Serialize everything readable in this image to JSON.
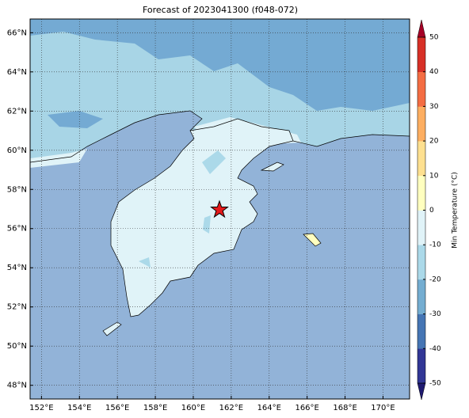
{
  "map": {
    "title": "Forecast of 2023041300 (f048-072)",
    "xlim": [
      151.4,
      171.4
    ],
    "ylim": [
      47.3,
      66.7
    ],
    "xticks": [
      {
        "value": 152,
        "label": "152°E"
      },
      {
        "value": 154,
        "label": "154°E"
      },
      {
        "value": 156,
        "label": "156°E"
      },
      {
        "value": 158,
        "label": "158°E"
      },
      {
        "value": 160,
        "label": "160°E"
      },
      {
        "value": 162,
        "label": "162°E"
      },
      {
        "value": 164,
        "label": "164°E"
      },
      {
        "value": 166,
        "label": "166°E"
      },
      {
        "value": 168,
        "label": "168°E"
      },
      {
        "value": 170,
        "label": "170°E"
      }
    ],
    "yticks": [
      {
        "value": 48,
        "label": "48°N"
      },
      {
        "value": 50,
        "label": "50°N"
      },
      {
        "value": 52,
        "label": "52°N"
      },
      {
        "value": 54,
        "label": "54°N"
      },
      {
        "value": 56,
        "label": "56°N"
      },
      {
        "value": 58,
        "label": "58°N"
      },
      {
        "value": 60,
        "label": "60°N"
      },
      {
        "value": 62,
        "label": "62°N"
      },
      {
        "value": 64,
        "label": "64°N"
      },
      {
        "value": 66,
        "label": "66°N"
      }
    ],
    "grid": true,
    "colorbar": {
      "label": "Min Temperature (°C)",
      "lim": [
        -50,
        50
      ],
      "ticks": [
        -50,
        -40,
        -30,
        -20,
        -10,
        0,
        10,
        20,
        30,
        40,
        50
      ],
      "colors": [
        "#313695",
        "#4575b4",
        "#74add1",
        "#abd9e9",
        "#e0f3f8",
        "#ffffbf",
        "#fee090",
        "#fdae61",
        "#f46d43",
        "#d73027"
      ],
      "under_color": "#1f1a70",
      "over_color": "#a50026"
    }
  }
}
